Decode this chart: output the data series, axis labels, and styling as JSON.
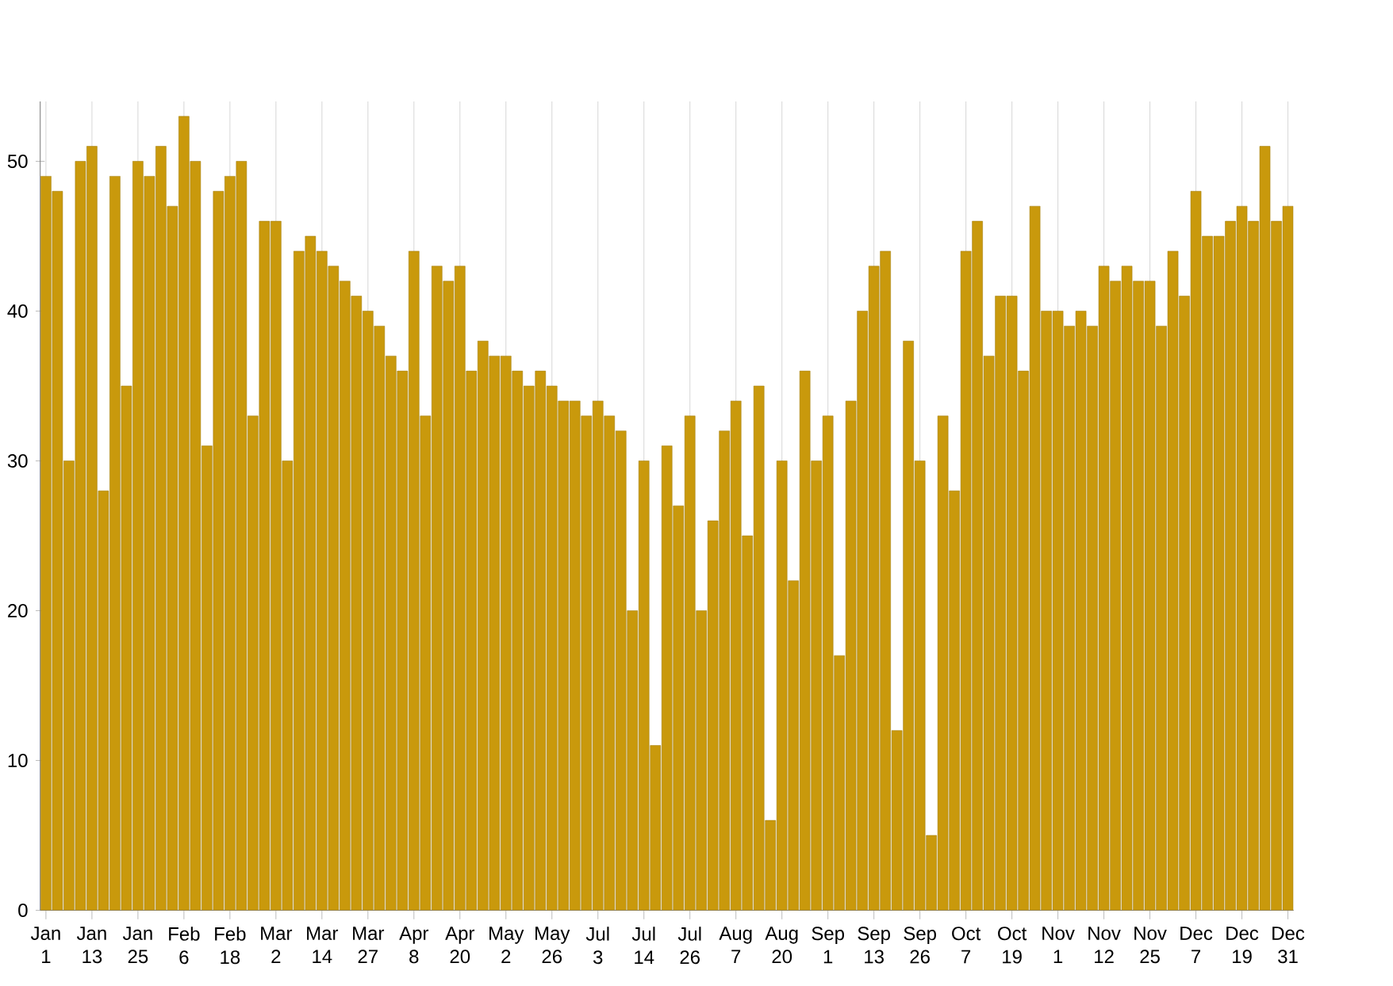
{
  "chart_data": {
    "type": "bar",
    "color": "#c9990c",
    "grid": "x",
    "ylim": [
      0,
      54
    ],
    "yticks": [
      0,
      10,
      20,
      30,
      40,
      50
    ],
    "categories": [
      "Jan 1",
      null,
      null,
      null,
      "Jan 13",
      null,
      null,
      null,
      "Jan 25",
      null,
      null,
      null,
      "Feb 6",
      null,
      null,
      null,
      "Feb 18",
      null,
      null,
      null,
      "Mar 2",
      null,
      null,
      null,
      "Mar 14",
      null,
      null,
      null,
      "Mar 27",
      null,
      null,
      null,
      "Apr 8",
      null,
      null,
      null,
      "Apr 20",
      null,
      null,
      null,
      "May 2",
      null,
      null,
      null,
      "May 26",
      null,
      null,
      null,
      "Jul 3",
      null,
      null,
      null,
      "Jul 14",
      null,
      null,
      null,
      "Jul 26",
      null,
      null,
      null,
      "Aug 7",
      null,
      null,
      null,
      "Aug 20",
      null,
      null,
      null,
      "Sep 1",
      null,
      null,
      null,
      "Sep 13",
      null,
      null,
      null,
      "Sep 26",
      null,
      null,
      null,
      "Oct 7",
      null,
      null,
      null,
      "Oct 19",
      null,
      null,
      null,
      "Nov 1",
      null,
      null,
      null,
      "Nov 12",
      null,
      null,
      null,
      "Nov 25",
      null,
      null,
      null,
      "Dec 7",
      null,
      null,
      null,
      "Dec 19",
      null,
      null,
      null,
      "Dec 31"
    ],
    "values": [
      49,
      48,
      30,
      50,
      51,
      28,
      49,
      35,
      50,
      49,
      51,
      47,
      53,
      50,
      31,
      48,
      49,
      50,
      33,
      46,
      46,
      30,
      44,
      45,
      44,
      43,
      42,
      41,
      40,
      39,
      37,
      36,
      44,
      33,
      43,
      42,
      43,
      36,
      38,
      37,
      37,
      36,
      35,
      36,
      35,
      34,
      34,
      33,
      34,
      33,
      32,
      20,
      30,
      11,
      31,
      27,
      33,
      20,
      26,
      32,
      34,
      25,
      35,
      6,
      30,
      22,
      36,
      30,
      33,
      17,
      34,
      40,
      43,
      44,
      12,
      38,
      30,
      5,
      33,
      28,
      44,
      46,
      37,
      41,
      41,
      36,
      47,
      40,
      40,
      39,
      40,
      39,
      43,
      42,
      43,
      42,
      42,
      39,
      44,
      41,
      48,
      45,
      45,
      46,
      47,
      46,
      51,
      46,
      47
    ]
  }
}
